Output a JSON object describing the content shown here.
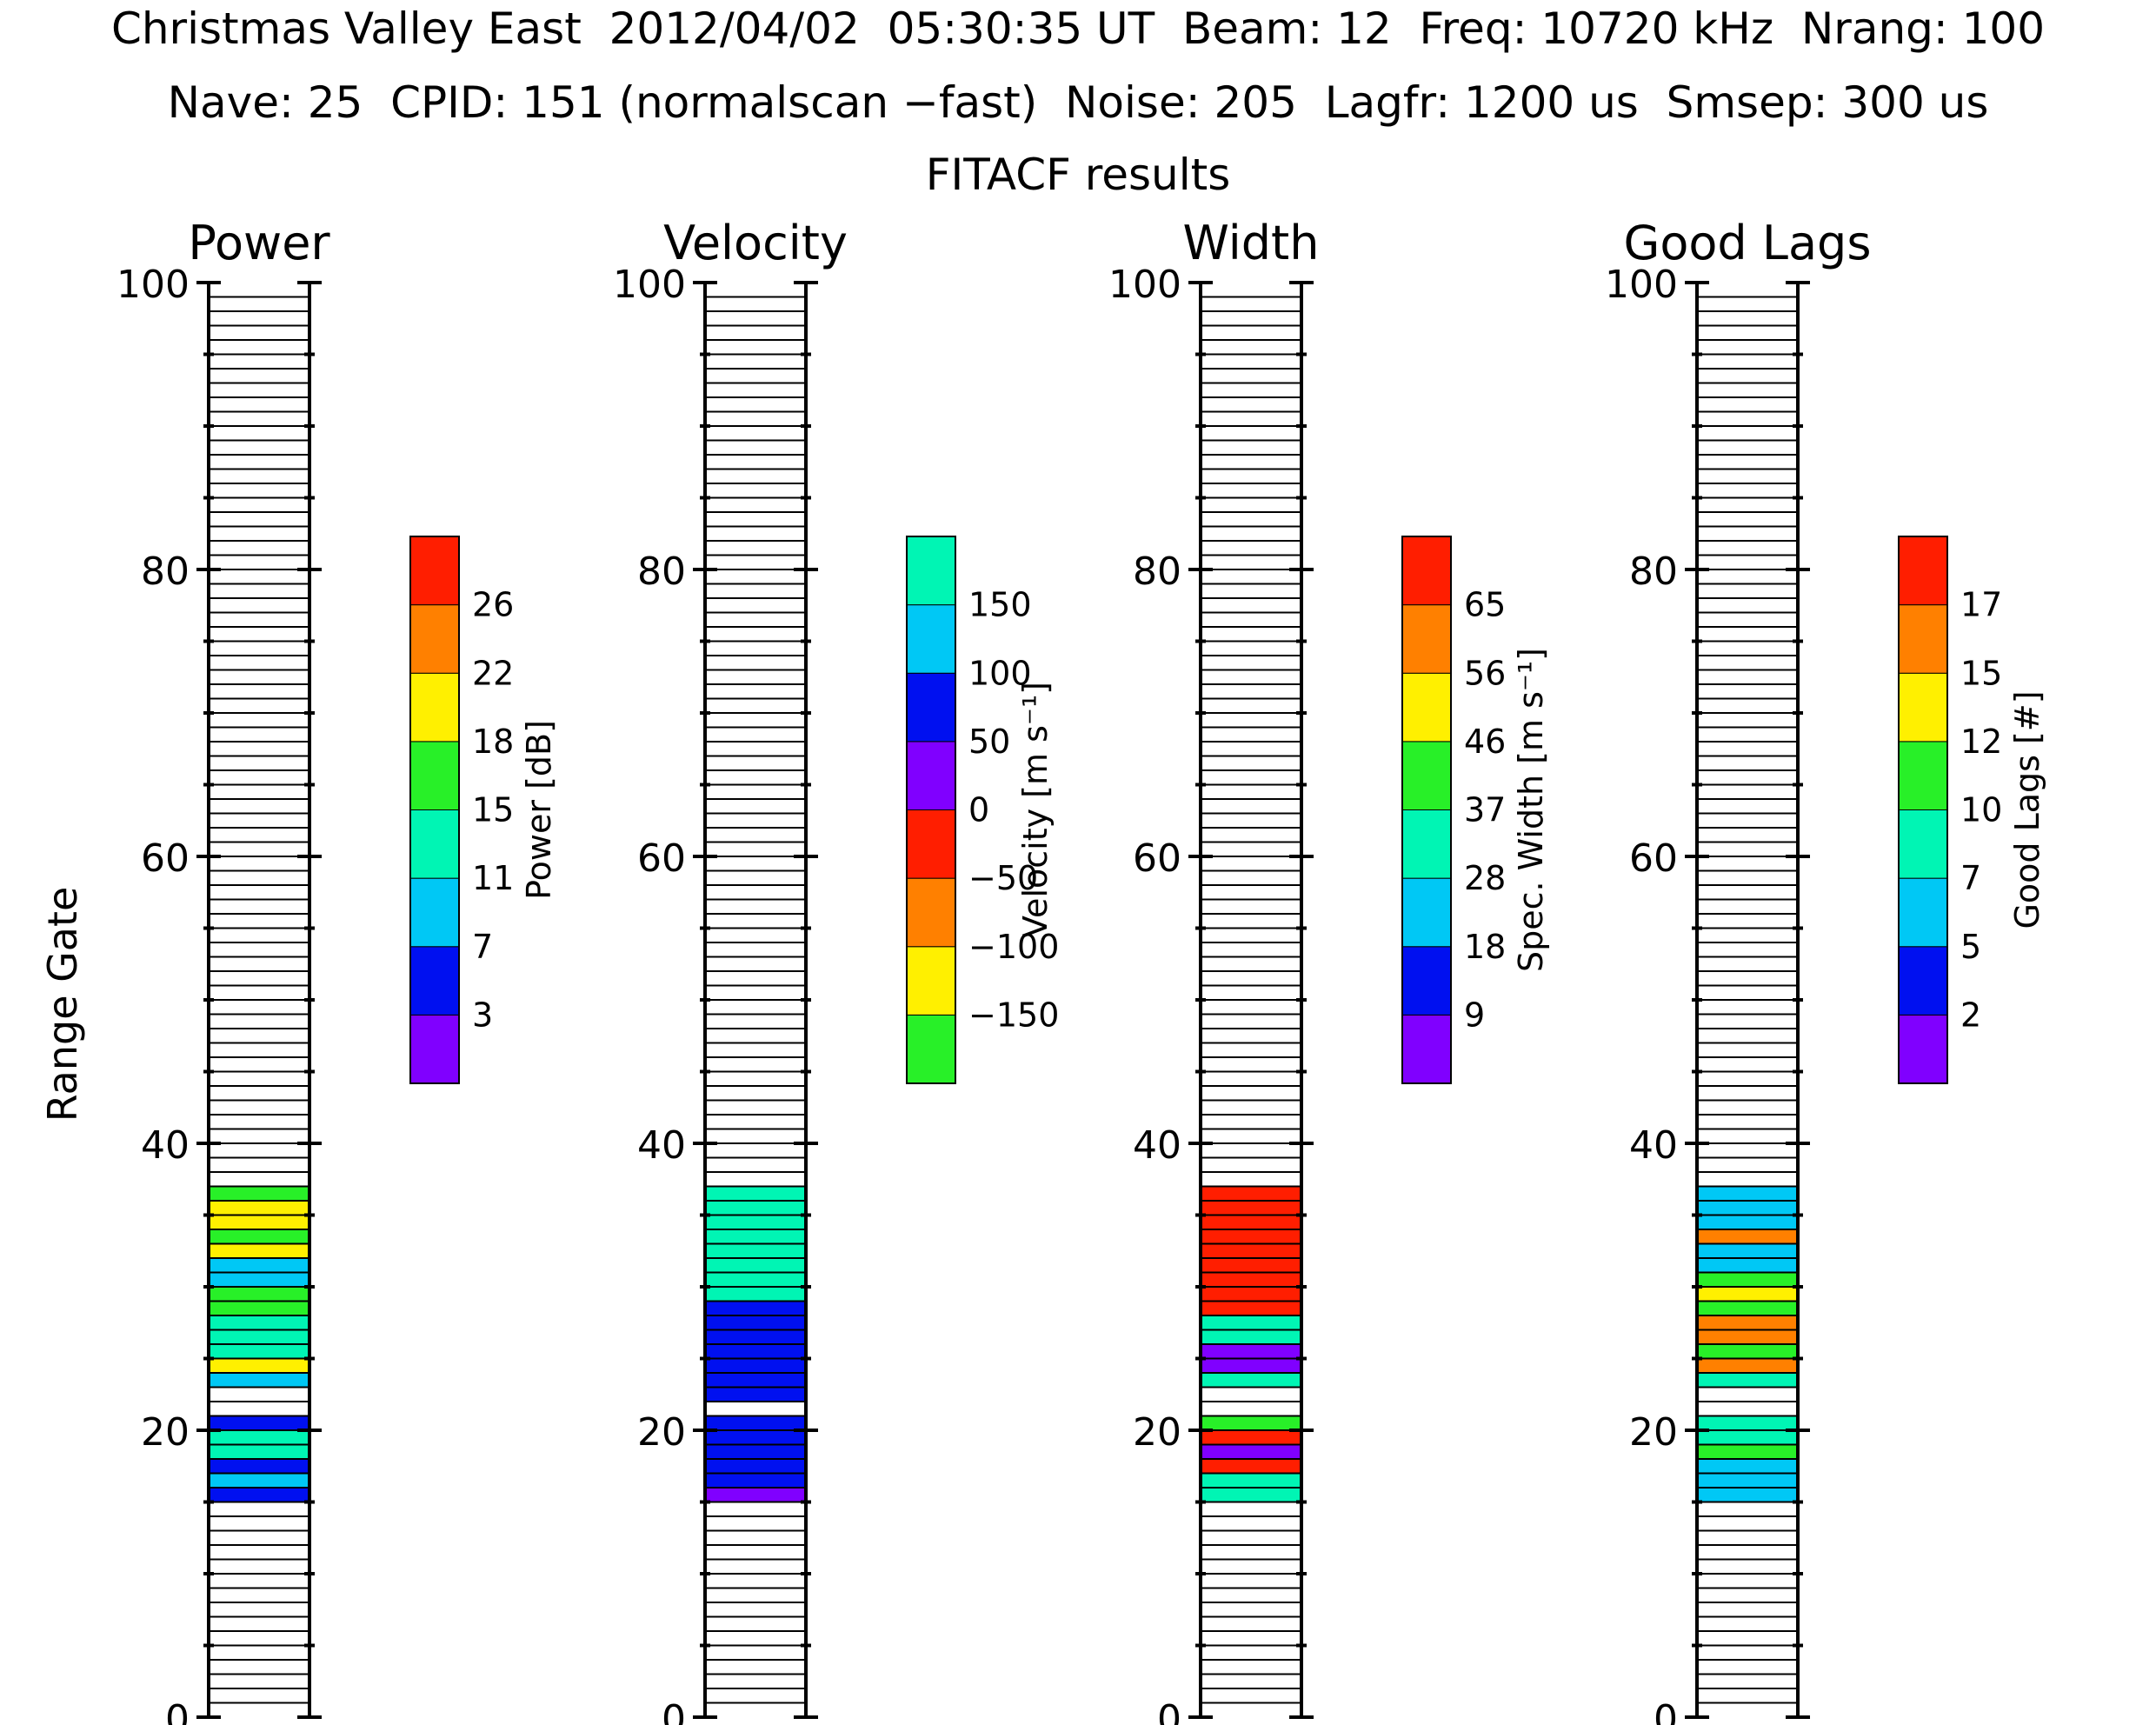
{
  "header": {
    "line1": "Christmas Valley East  2012/04/02  05:30:35 UT  Beam: 12  Freq: 10720 kHz  Nrang: 100",
    "line2": "Nave: 25  CPID: 151 (normalscan −fast)  Noise: 205  Lagfr: 1200 us  Smsep: 300 us",
    "subtitle": "FITACF results"
  },
  "colors": {
    "purple": "#8000ff",
    "blue": "#0010f0",
    "lightblue": "#00c8f5",
    "teal": "#00f5b4",
    "green": "#28f028",
    "yellow": "#fff000",
    "orange": "#ff8000",
    "red": "#ff1e00",
    "empty": "#ffffff"
  },
  "chart_data": [
    {
      "type": "heatmap",
      "title": "Power",
      "ylabel": "Range Gate",
      "ylim": [
        0,
        100
      ],
      "yticks": [
        "0",
        "20",
        "40",
        "60",
        "80",
        "100"
      ],
      "colorbar": {
        "label": "Power [dB]",
        "colors": [
          "purple",
          "blue",
          "lightblue",
          "teal",
          "green",
          "yellow",
          "orange",
          "red"
        ],
        "ticks": [
          "3",
          "7",
          "11",
          "15",
          "18",
          "22",
          "26"
        ]
      },
      "gates": [
        {
          "gate": 15,
          "color": "blue"
        },
        {
          "gate": 16,
          "color": "lightblue"
        },
        {
          "gate": 17,
          "color": "blue"
        },
        {
          "gate": 18,
          "color": "teal"
        },
        {
          "gate": 19,
          "color": "teal"
        },
        {
          "gate": 20,
          "color": "blue"
        },
        {
          "gate": 23,
          "color": "lightblue"
        },
        {
          "gate": 24,
          "color": "yellow"
        },
        {
          "gate": 25,
          "color": "teal"
        },
        {
          "gate": 26,
          "color": "teal"
        },
        {
          "gate": 27,
          "color": "teal"
        },
        {
          "gate": 28,
          "color": "green"
        },
        {
          "gate": 29,
          "color": "green"
        },
        {
          "gate": 30,
          "color": "lightblue"
        },
        {
          "gate": 31,
          "color": "lightblue"
        },
        {
          "gate": 32,
          "color": "yellow"
        },
        {
          "gate": 33,
          "color": "green"
        },
        {
          "gate": 34,
          "color": "yellow"
        },
        {
          "gate": 35,
          "color": "yellow"
        },
        {
          "gate": 36,
          "color": "green"
        }
      ]
    },
    {
      "type": "heatmap",
      "title": "Velocity",
      "ylim": [
        0,
        100
      ],
      "yticks": [
        "0",
        "20",
        "40",
        "60",
        "80",
        "100"
      ],
      "colorbar": {
        "label": "Velocity [m s⁻¹]",
        "colors": [
          "green",
          "yellow",
          "orange",
          "red",
          "purple",
          "blue",
          "lightblue",
          "teal"
        ],
        "ticks": [
          "−150",
          "−100",
          "−50",
          "0",
          "50",
          "100",
          "150"
        ]
      },
      "gates": [
        {
          "gate": 15,
          "color": "purple"
        },
        {
          "gate": 16,
          "color": "blue"
        },
        {
          "gate": 17,
          "color": "blue"
        },
        {
          "gate": 18,
          "color": "blue"
        },
        {
          "gate": 19,
          "color": "blue"
        },
        {
          "gate": 20,
          "color": "blue"
        },
        {
          "gate": 22,
          "color": "blue"
        },
        {
          "gate": 23,
          "color": "blue"
        },
        {
          "gate": 24,
          "color": "blue"
        },
        {
          "gate": 25,
          "color": "blue"
        },
        {
          "gate": 26,
          "color": "blue"
        },
        {
          "gate": 27,
          "color": "blue"
        },
        {
          "gate": 28,
          "color": "blue"
        },
        {
          "gate": 29,
          "color": "teal"
        },
        {
          "gate": 30,
          "color": "teal"
        },
        {
          "gate": 31,
          "color": "teal"
        },
        {
          "gate": 32,
          "color": "teal"
        },
        {
          "gate": 33,
          "color": "teal"
        },
        {
          "gate": 34,
          "color": "teal"
        },
        {
          "gate": 35,
          "color": "teal"
        },
        {
          "gate": 36,
          "color": "teal"
        }
      ]
    },
    {
      "type": "heatmap",
      "title": "Width",
      "ylim": [
        0,
        100
      ],
      "yticks": [
        "0",
        "20",
        "40",
        "60",
        "80",
        "100"
      ],
      "colorbar": {
        "label": "Spec. Width [m s⁻¹]",
        "colors": [
          "purple",
          "blue",
          "lightblue",
          "teal",
          "green",
          "yellow",
          "orange",
          "red"
        ],
        "ticks": [
          "9",
          "18",
          "28",
          "37",
          "46",
          "56",
          "65"
        ]
      },
      "gates": [
        {
          "gate": 15,
          "color": "teal"
        },
        {
          "gate": 16,
          "color": "teal"
        },
        {
          "gate": 17,
          "color": "red"
        },
        {
          "gate": 18,
          "color": "purple"
        },
        {
          "gate": 19,
          "color": "red"
        },
        {
          "gate": 20,
          "color": "green"
        },
        {
          "gate": 23,
          "color": "teal"
        },
        {
          "gate": 24,
          "color": "purple"
        },
        {
          "gate": 25,
          "color": "purple"
        },
        {
          "gate": 26,
          "color": "teal"
        },
        {
          "gate": 27,
          "color": "teal"
        },
        {
          "gate": 28,
          "color": "red"
        },
        {
          "gate": 29,
          "color": "red"
        },
        {
          "gate": 30,
          "color": "red"
        },
        {
          "gate": 31,
          "color": "red"
        },
        {
          "gate": 32,
          "color": "red"
        },
        {
          "gate": 33,
          "color": "red"
        },
        {
          "gate": 34,
          "color": "red"
        },
        {
          "gate": 35,
          "color": "red"
        },
        {
          "gate": 36,
          "color": "red"
        }
      ]
    },
    {
      "type": "heatmap",
      "title": "Good Lags",
      "ylim": [
        0,
        100
      ],
      "yticks": [
        "0",
        "20",
        "40",
        "60",
        "80",
        "100"
      ],
      "colorbar": {
        "label": "Good Lags [#]",
        "colors": [
          "purple",
          "blue",
          "lightblue",
          "teal",
          "green",
          "yellow",
          "orange",
          "red"
        ],
        "ticks": [
          "2",
          "5",
          "7",
          "10",
          "12",
          "15",
          "17"
        ]
      },
      "gates": [
        {
          "gate": 15,
          "color": "lightblue"
        },
        {
          "gate": 16,
          "color": "lightblue"
        },
        {
          "gate": 17,
          "color": "lightblue"
        },
        {
          "gate": 18,
          "color": "green"
        },
        {
          "gate": 19,
          "color": "teal"
        },
        {
          "gate": 20,
          "color": "teal"
        },
        {
          "gate": 23,
          "color": "teal"
        },
        {
          "gate": 24,
          "color": "orange"
        },
        {
          "gate": 25,
          "color": "green"
        },
        {
          "gate": 26,
          "color": "orange"
        },
        {
          "gate": 27,
          "color": "orange"
        },
        {
          "gate": 28,
          "color": "green"
        },
        {
          "gate": 29,
          "color": "yellow"
        },
        {
          "gate": 30,
          "color": "green"
        },
        {
          "gate": 31,
          "color": "lightblue"
        },
        {
          "gate": 32,
          "color": "lightblue"
        },
        {
          "gate": 33,
          "color": "orange"
        },
        {
          "gate": 34,
          "color": "lightblue"
        },
        {
          "gate": 35,
          "color": "lightblue"
        },
        {
          "gate": 36,
          "color": "lightblue"
        }
      ]
    }
  ]
}
